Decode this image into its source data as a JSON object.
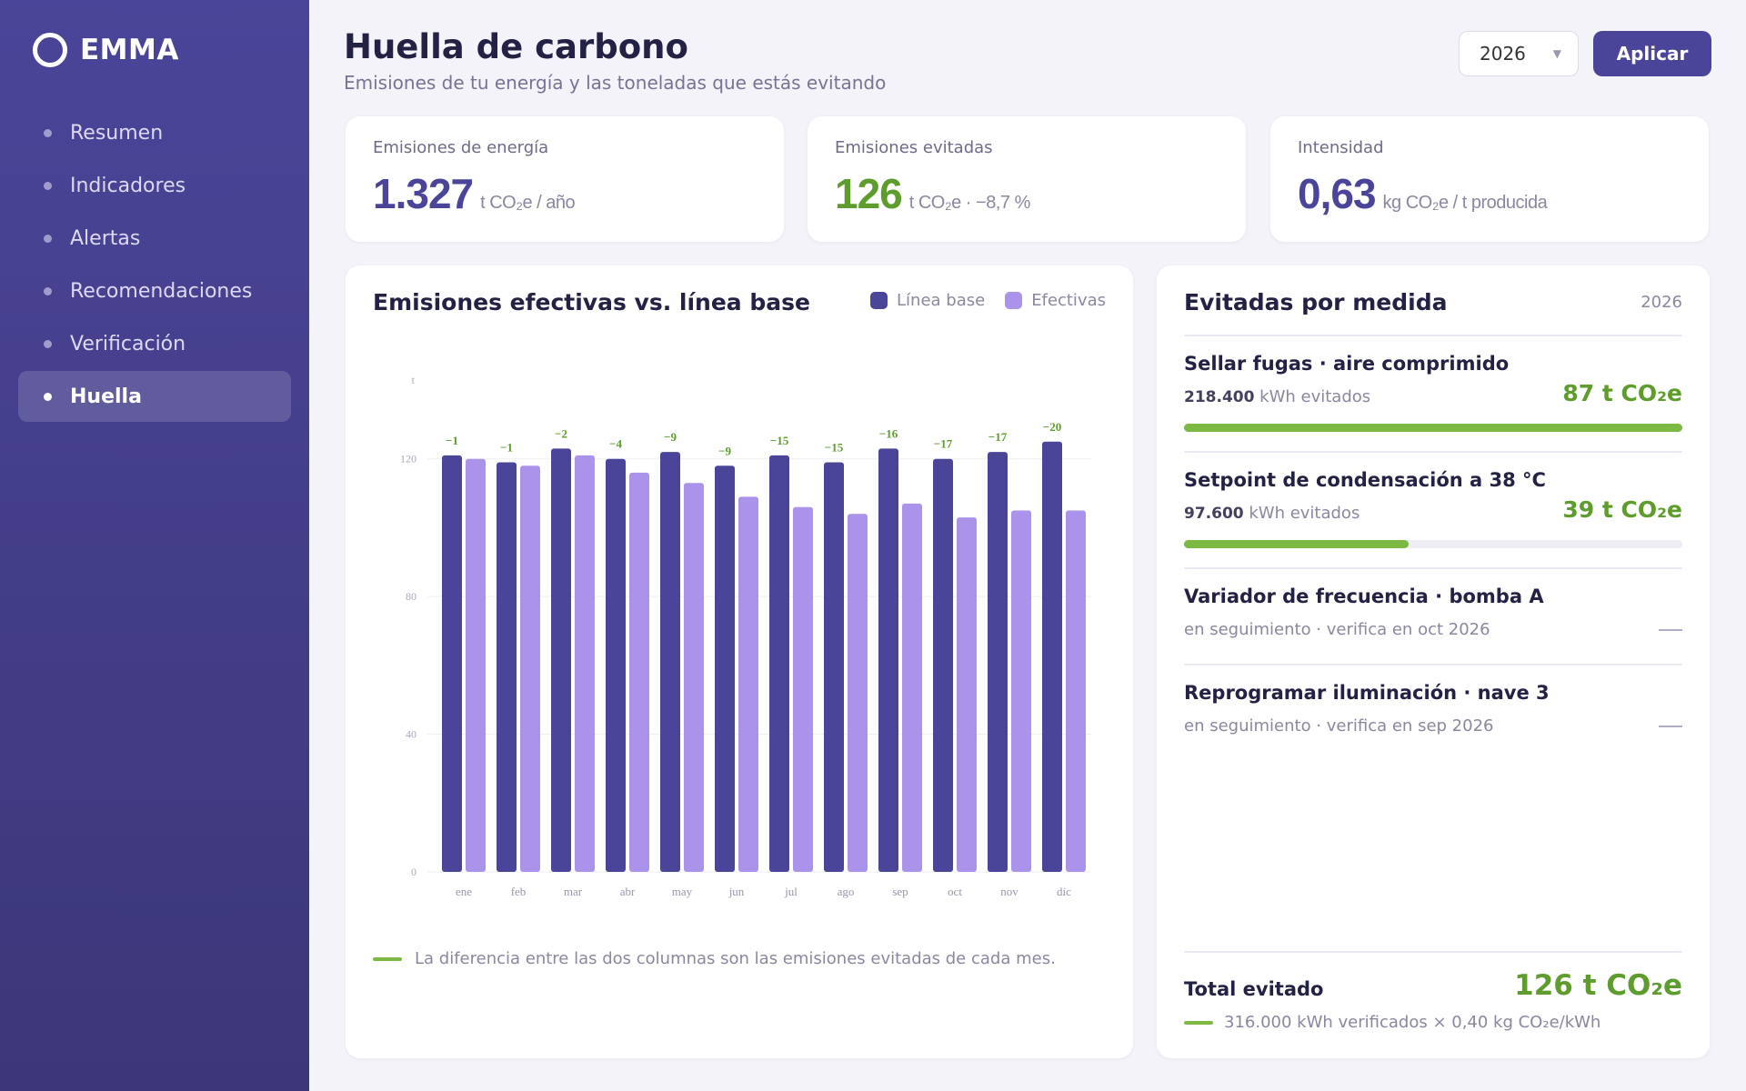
{
  "brand": {
    "name": "EMMA"
  },
  "nav": [
    {
      "label": "Resumen",
      "active": false
    },
    {
      "label": "Indicadores",
      "active": false
    },
    {
      "label": "Alertas",
      "active": false
    },
    {
      "label": "Recomendaciones",
      "active": false
    },
    {
      "label": "Verificación",
      "active": false
    },
    {
      "label": "Huella",
      "active": true
    }
  ],
  "header": {
    "title": "Huella de carbono",
    "subtitle": "Emisiones de tu energía y las toneladas que estás evitando",
    "year": "2026",
    "apply_label": "Aplicar"
  },
  "kpis": [
    {
      "label": "Emisiones de energía",
      "value": "1.327",
      "unit": "t CO₂e / año"
    },
    {
      "label": "Emisiones evitadas",
      "value": "126",
      "unit": "t CO₂e · −8,7 %"
    },
    {
      "label": "Intensidad",
      "value": "0,63",
      "unit": "kg CO₂e / t producida"
    }
  ],
  "chart_card": {
    "title": "Emisiones efectivas vs. línea base",
    "note": "La diferencia entre las dos columnas son las emisiones evitadas de cada mes."
  },
  "chart_data": {
    "type": "bar",
    "categories": [
      "ene",
      "feb",
      "mar",
      "abr",
      "may",
      "jun",
      "jul",
      "ago",
      "sep",
      "oct",
      "nov",
      "dic"
    ],
    "series": [
      {
        "name": "Línea base",
        "color": "#4b4599",
        "values": [
          121,
          119,
          123,
          120,
          122,
          118,
          121,
          119,
          123,
          120,
          122,
          125
        ]
      },
      {
        "name": "Efectivas",
        "color": "#ab92ea",
        "values": [
          120,
          118,
          121,
          116,
          113,
          109,
          106,
          104,
          107,
          103,
          105,
          105
        ]
      }
    ],
    "labels": [
      "−1",
      "−1",
      "−2",
      "−4",
      "−9",
      "−9",
      "−15",
      "−15",
      "−16",
      "−17",
      "−17",
      "−20"
    ],
    "ylabel": "t",
    "yticks": [
      0,
      40,
      80,
      120
    ],
    "ylim": [
      0,
      140
    ],
    "grid": true,
    "legend": "top-right"
  },
  "measures": {
    "title": "Evitadas por medida",
    "year": "2026",
    "items": [
      {
        "name": "Sellar fugas · aire comprimido",
        "kwh": "218.400",
        "kwh_suffix": "kWh evitados",
        "value": "87 t CO₂e",
        "progress": 1.0
      },
      {
        "name": "Setpoint de condensación a 38 °C",
        "kwh": "97.600",
        "kwh_suffix": "kWh evitados",
        "value": "39 t CO₂e",
        "progress": 0.45
      },
      {
        "name": "Variador de frecuencia · bomba A",
        "status": "en seguimiento · verifica en oct 2026",
        "value": "—"
      },
      {
        "name": "Reprogramar iluminación · nave 3",
        "status": "en seguimiento · verifica en sep 2026",
        "value": "—"
      }
    ],
    "total_label": "Total evitado",
    "total_value": "126 t CO₂e",
    "total_note": "316.000 kWh verificados × 0,40 kg CO₂e/kWh"
  }
}
